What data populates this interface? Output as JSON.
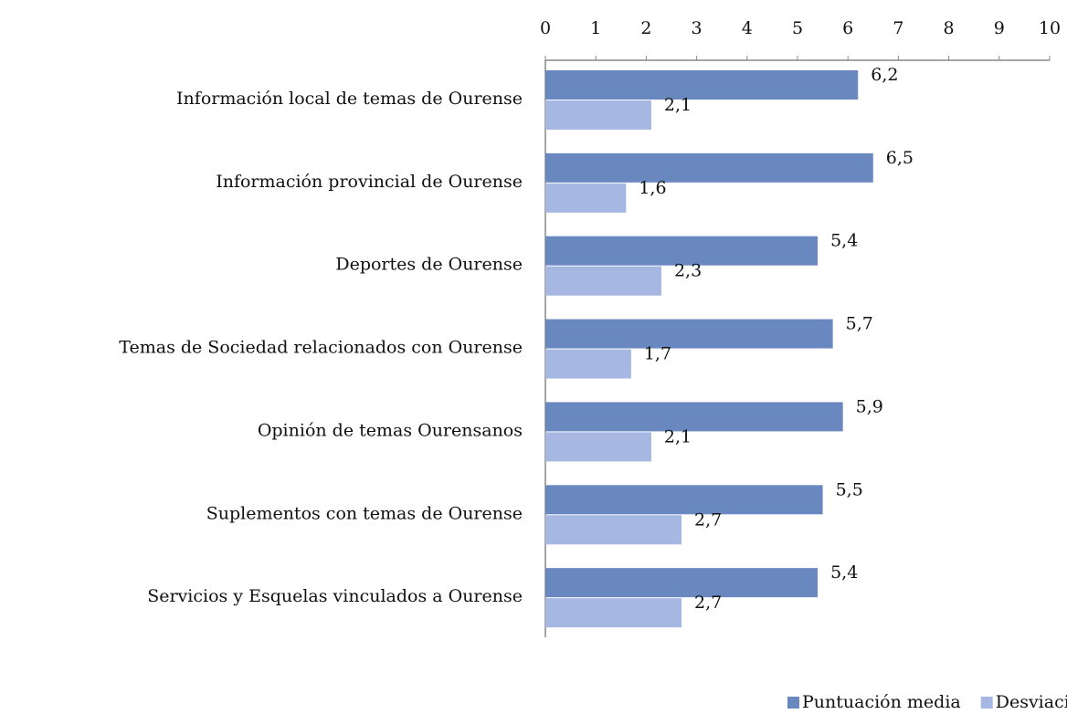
{
  "chart_data": {
    "type": "hbar",
    "categories": [
      "Información local de temas de Ourense",
      "Información provincial de Ourense",
      "Deportes de Ourense",
      "Temas de Sociedad relacionados con Ourense",
      "Opinión de temas Ourensanos",
      "Suplementos con temas de Ourense",
      "Servicios y Esquelas vinculados a Ourense"
    ],
    "series": [
      {
        "name": "Puntuación media",
        "color": "#6a88c0",
        "values": [
          6.2,
          6.5,
          5.4,
          5.7,
          5.9,
          5.5,
          5.4
        ],
        "value_labels": [
          "6,2",
          "6,5",
          "5,4",
          "5,7",
          "5,9",
          "5,5",
          "5,4"
        ]
      },
      {
        "name": "Desviación std.",
        "color": "#a6b8e2",
        "values": [
          2.1,
          1.6,
          2.3,
          1.7,
          2.1,
          2.7,
          2.7
        ],
        "value_labels": [
          "2,1",
          "1,6",
          "2,3",
          "1,7",
          "2,1",
          "2,7",
          "2,7"
        ]
      }
    ],
    "xlim": [
      0,
      10
    ],
    "xticks": [
      0,
      1,
      2,
      3,
      4,
      5,
      6,
      7,
      8,
      9,
      10
    ],
    "legend": "bottom-right"
  }
}
